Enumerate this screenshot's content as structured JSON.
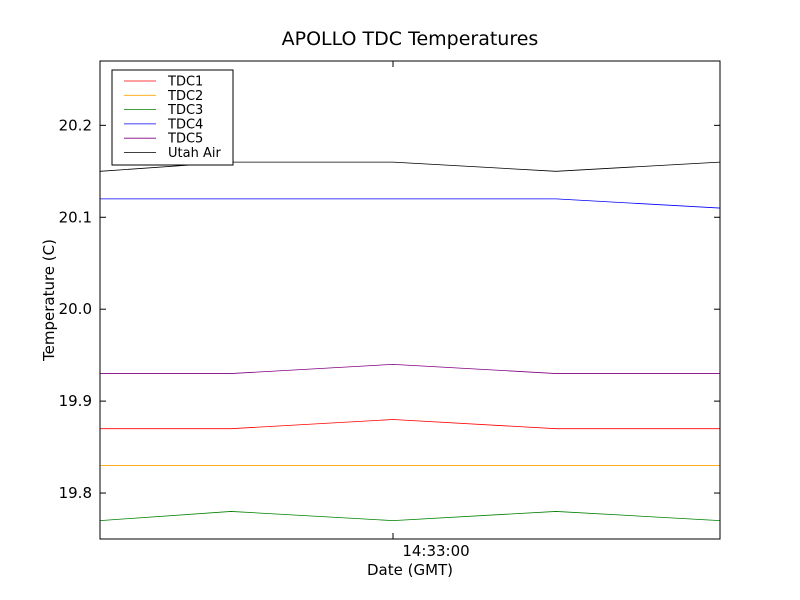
{
  "chart_data": {
    "type": "line",
    "title": "APOLLO TDC Temperatures",
    "xlabel": "Date (GMT)",
    "ylabel": "Temperature (C)",
    "x_tick_labels": [
      "14:33:00"
    ],
    "y_tick_labels": [
      "19.8",
      "19.9",
      "20.0",
      "20.1",
      "20.2"
    ],
    "y_ticks": [
      19.8,
      19.9,
      20.0,
      20.1,
      20.2
    ],
    "ylim": [
      19.75,
      20.27
    ],
    "grid": false,
    "legend_position": "top-left",
    "series": [
      {
        "name": "TDC1",
        "color": "#ff0000",
        "values": [
          19.87,
          19.87,
          19.88,
          19.87,
          19.87
        ]
      },
      {
        "name": "TDC2",
        "color": "#ffa500",
        "values": [
          19.83,
          19.83,
          19.83,
          19.83,
          19.83
        ]
      },
      {
        "name": "TDC3",
        "color": "#008000",
        "values": [
          19.77,
          19.78,
          19.77,
          19.78,
          19.77
        ]
      },
      {
        "name": "TDC4",
        "color": "#0000ff",
        "values": [
          20.12,
          20.12,
          20.12,
          20.12,
          20.11
        ]
      },
      {
        "name": "TDC5",
        "color": "#800080",
        "values": [
          19.93,
          19.93,
          19.94,
          19.93,
          19.93
        ]
      },
      {
        "name": "Utah Air",
        "color": "#000000",
        "values": [
          20.15,
          20.16,
          20.16,
          20.15,
          20.16
        ]
      }
    ]
  }
}
